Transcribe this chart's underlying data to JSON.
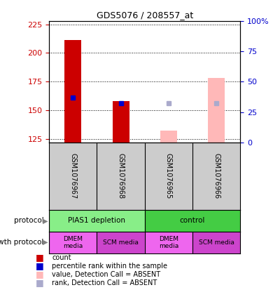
{
  "title": "GDS5076 / 208557_at",
  "samples": [
    "GSM1076967",
    "GSM1076968",
    "GSM1076965",
    "GSM1076966"
  ],
  "ylim_left": [
    122,
    228
  ],
  "ylim_right": [
    0,
    100
  ],
  "yticks_left": [
    125,
    150,
    175,
    200,
    225
  ],
  "yticks_right": [
    0,
    25,
    50,
    75,
    100
  ],
  "red_bars": [
    211,
    158,
    null,
    null
  ],
  "blue_squares": [
    161,
    156,
    null,
    null
  ],
  "pink_bars": [
    null,
    null,
    132,
    178
  ],
  "lightblue_squares": [
    null,
    null,
    156,
    156
  ],
  "red_color": "#cc0000",
  "blue_color": "#0000cc",
  "pink_color": "#ffb8b8",
  "lightblue_color": "#aaaacc",
  "sample_bg_color": "#cccccc",
  "protocol_groups": [
    {
      "label": "PIAS1 depletion",
      "color": "#88ee88",
      "span": [
        0,
        2
      ]
    },
    {
      "label": "control",
      "color": "#44cc44",
      "span": [
        2,
        4
      ]
    }
  ],
  "growth_groups": [
    {
      "label": "DMEM\nmedia",
      "color": "#ee66ee",
      "span": [
        0,
        1
      ]
    },
    {
      "label": "SCM media",
      "color": "#cc44cc",
      "span": [
        1,
        2
      ]
    },
    {
      "label": "DMEM\nmedia",
      "color": "#ee66ee",
      "span": [
        2,
        3
      ]
    },
    {
      "label": "SCM media",
      "color": "#cc44cc",
      "span": [
        3,
        4
      ]
    }
  ],
  "background_color": "#ffffff",
  "bar_width": 0.35,
  "legend_items": [
    {
      "label": "count",
      "color": "#cc0000"
    },
    {
      "label": "percentile rank within the sample",
      "color": "#0000cc"
    },
    {
      "label": "value, Detection Call = ABSENT",
      "color": "#ffb8b8"
    },
    {
      "label": "rank, Detection Call = ABSENT",
      "color": "#aaaacc"
    }
  ],
  "label_color_left": "#cc0000",
  "label_color_right": "#0000cc"
}
